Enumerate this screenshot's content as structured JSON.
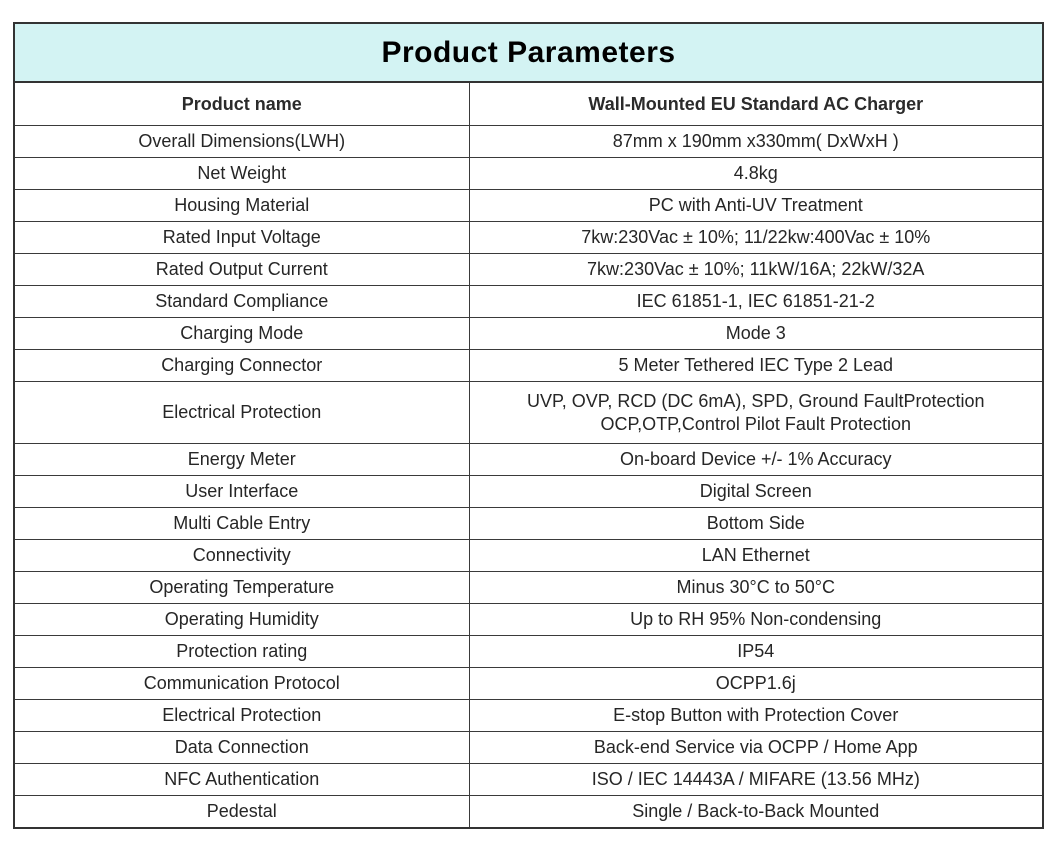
{
  "title": "Product Parameters",
  "header": {
    "label": "Product name",
    "value": "Wall-Mounted EU Standard AC Charger"
  },
  "rows": [
    {
      "label": "Overall Dimensions(LWH)",
      "value": "87mm x 190mm x330mm( DxWxH )"
    },
    {
      "label": "Net Weight",
      "value": "4.8kg"
    },
    {
      "label": "Housing Material",
      "value": "PC with Anti-UV Treatment"
    },
    {
      "label": "Rated Input Voltage",
      "value": "7kw:230Vac ± 10%; 11/22kw:400Vac ± 10%"
    },
    {
      "label": "Rated Output Current",
      "value": "7kw:230Vac ± 10%; 11kW/16A; 22kW/32A"
    },
    {
      "label": "Standard Compliance",
      "value": "IEC 61851-1, IEC 61851-21-2"
    },
    {
      "label": "Charging Mode",
      "value": "Mode 3"
    },
    {
      "label": "Charging Connector",
      "value": "5 Meter Tethered IEC Type 2 Lead"
    },
    {
      "label": "Electrical Protection",
      "value": "UVP, OVP, RCD (DC 6mA), SPD, Ground FaultProtection",
      "value2": "OCP,OTP,Control Pilot Fault Protection"
    },
    {
      "label": "Energy Meter",
      "value": "On-board Device +/- 1% Accuracy"
    },
    {
      "label": "User Interface",
      "value": "Digital Screen"
    },
    {
      "label": "Multi Cable Entry",
      "value": "Bottom Side"
    },
    {
      "label": "Connectivity",
      "value": "LAN Ethernet"
    },
    {
      "label": "Operating Temperature",
      "value": "Minus 30°C to 50°C"
    },
    {
      "label": "Operating Humidity",
      "value": "Up to RH 95% Non-condensing"
    },
    {
      "label": "Protection rating",
      "value": "IP54"
    },
    {
      "label": "Communication Protocol",
      "value": "OCPP1.6j"
    },
    {
      "label": "Electrical Protection",
      "value": "E-stop Button with Protection Cover"
    },
    {
      "label": "Data Connection",
      "value": "Back-end Service via OCPP / Home App"
    },
    {
      "label": "NFC Authentication",
      "value": "ISO / IEC 14443A / MIFARE (13.56 MHz)"
    },
    {
      "label": "Pedestal",
      "value": "Single / Back-to-Back Mounted"
    }
  ],
  "colors": {
    "title_bg": "#d3f3f3",
    "border": "#3a3a3a"
  }
}
